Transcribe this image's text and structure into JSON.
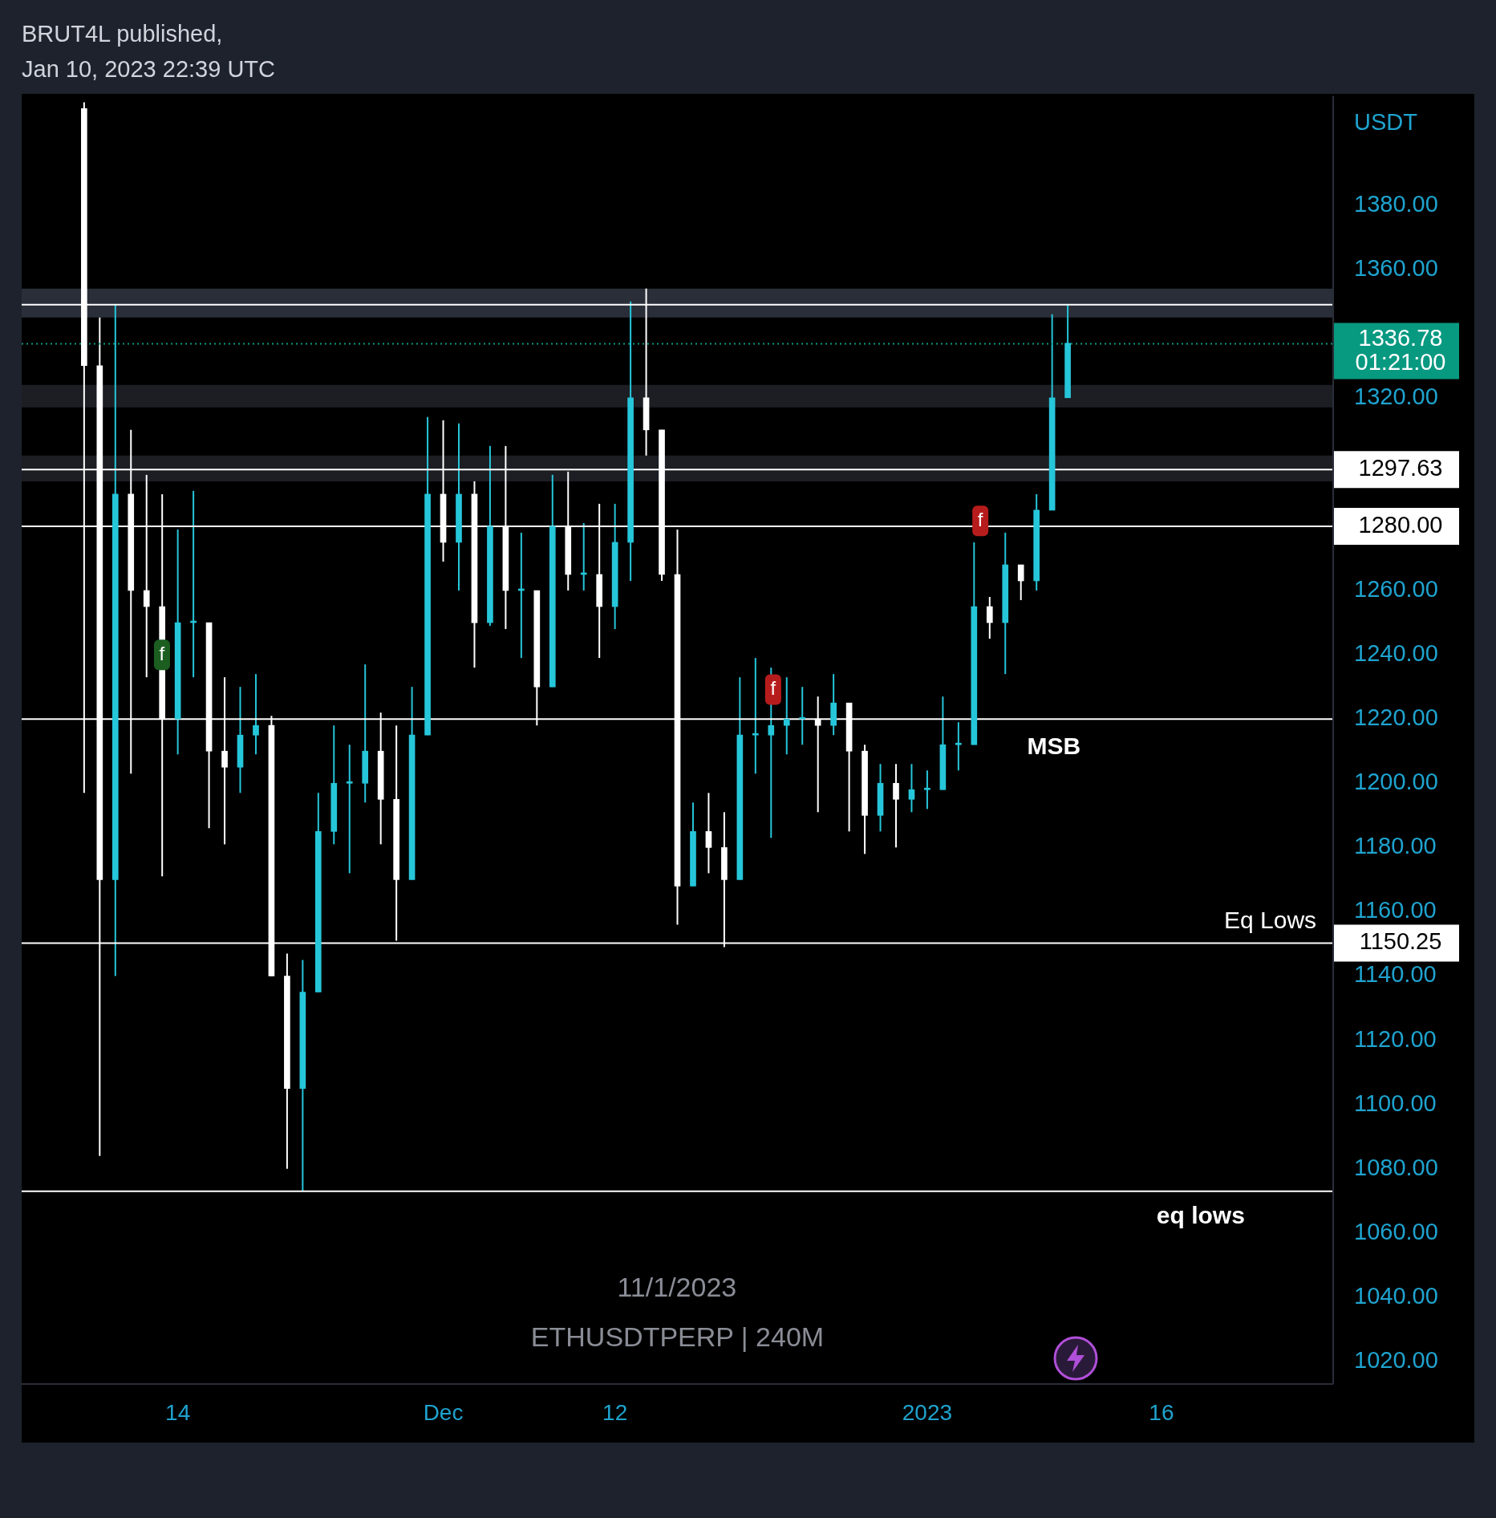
{
  "chart_data": {
    "type": "candlestick",
    "title": "BRUT4L published,",
    "subtitle": "Jan 10, 2023 22:39 UTC",
    "ylabel": "USDT",
    "x": [
      "2022-11-08",
      "2022-11-09",
      "2022-11-10",
      "2022-11-11",
      "2022-11-12",
      "2022-11-13",
      "2022-11-14",
      "2022-11-15",
      "2022-11-16",
      "2022-11-17",
      "2022-11-18",
      "2022-11-19",
      "2022-11-20",
      "2022-11-21",
      "2022-11-22",
      "2022-11-23",
      "2022-11-24",
      "2022-11-25",
      "2022-11-26",
      "2022-11-27",
      "2022-11-28",
      "2022-11-29",
      "2022-11-30",
      "2022-12-01",
      "2022-12-02",
      "2022-12-03",
      "2022-12-04",
      "2022-12-05",
      "2022-12-06",
      "2022-12-07",
      "2022-12-08",
      "2022-12-09",
      "2022-12-10",
      "2022-12-11",
      "2022-12-12",
      "2022-12-13",
      "2022-12-14",
      "2022-12-15",
      "2022-12-16",
      "2022-12-17",
      "2022-12-18",
      "2022-12-19",
      "2022-12-20",
      "2022-12-21",
      "2022-12-22",
      "2022-12-23",
      "2022-12-24",
      "2022-12-25",
      "2022-12-26",
      "2022-12-27",
      "2022-12-28",
      "2022-12-29",
      "2022-12-30",
      "2022-12-31",
      "2023-01-01",
      "2023-01-02",
      "2023-01-03",
      "2023-01-04",
      "2023-01-05",
      "2023-01-06",
      "2023-01-07",
      "2023-01-08",
      "2023-01-09",
      "2023-01-10"
    ],
    "ohlc": [
      [
        1410,
        1412,
        1197,
        1330
      ],
      [
        1330,
        1345,
        1084,
        1170
      ],
      [
        1170,
        1349,
        1140,
        1290
      ],
      [
        1290,
        1310,
        1203,
        1260
      ],
      [
        1260,
        1296,
        1233,
        1255
      ],
      [
        1255,
        1290,
        1171,
        1220
      ],
      [
        1220,
        1279,
        1209,
        1250
      ],
      [
        1250,
        1291,
        1233,
        1250
      ],
      [
        1250,
        1250,
        1186,
        1210
      ],
      [
        1210,
        1233,
        1181,
        1205
      ],
      [
        1205,
        1230,
        1197,
        1215
      ],
      [
        1215,
        1234,
        1209,
        1218
      ],
      [
        1218,
        1221,
        1140,
        1140
      ],
      [
        1140,
        1147,
        1080,
        1105
      ],
      [
        1105,
        1145,
        1073,
        1135
      ],
      [
        1135,
        1197,
        1135,
        1185
      ],
      [
        1185,
        1218,
        1181,
        1200
      ],
      [
        1200,
        1212,
        1172,
        1200
      ],
      [
        1200,
        1237,
        1194,
        1210
      ],
      [
        1210,
        1222,
        1181,
        1195
      ],
      [
        1195,
        1218,
        1151,
        1170
      ],
      [
        1170,
        1230,
        1170,
        1215
      ],
      [
        1215,
        1314,
        1215,
        1290
      ],
      [
        1290,
        1313,
        1269,
        1275
      ],
      [
        1275,
        1312,
        1260,
        1290
      ],
      [
        1290,
        1294,
        1236,
        1250
      ],
      [
        1250,
        1305,
        1249,
        1280
      ],
      [
        1280,
        1305,
        1248,
        1260
      ],
      [
        1260,
        1278,
        1239,
        1260
      ],
      [
        1260,
        1260,
        1218,
        1230
      ],
      [
        1230,
        1296,
        1230,
        1280
      ],
      [
        1280,
        1297,
        1260,
        1265
      ],
      [
        1265,
        1281,
        1260,
        1265
      ],
      [
        1265,
        1287,
        1239,
        1255
      ],
      [
        1255,
        1287,
        1248,
        1275
      ],
      [
        1275,
        1350,
        1263,
        1320
      ],
      [
        1320,
        1354,
        1302,
        1310
      ],
      [
        1310,
        1310,
        1263,
        1265
      ],
      [
        1265,
        1279,
        1156,
        1168
      ],
      [
        1168,
        1194,
        1168,
        1185
      ],
      [
        1185,
        1197,
        1172,
        1180
      ],
      [
        1180,
        1191,
        1149,
        1170
      ],
      [
        1170,
        1233,
        1170,
        1215
      ],
      [
        1215,
        1239,
        1203,
        1215
      ],
      [
        1215,
        1236,
        1183,
        1218
      ],
      [
        1218,
        1233,
        1209,
        1220
      ],
      [
        1220,
        1230,
        1212,
        1220
      ],
      [
        1220,
        1227,
        1191,
        1218
      ],
      [
        1218,
        1234,
        1215,
        1225
      ],
      [
        1225,
        1225,
        1185,
        1210
      ],
      [
        1210,
        1212,
        1178,
        1190
      ],
      [
        1190,
        1206,
        1185,
        1200
      ],
      [
        1200,
        1206,
        1180,
        1195
      ],
      [
        1195,
        1206,
        1191,
        1198
      ],
      [
        1198,
        1204,
        1192,
        1198
      ],
      [
        1198,
        1227,
        1198,
        1212
      ],
      [
        1212,
        1219,
        1204,
        1212
      ],
      [
        1212,
        1275,
        1212,
        1255
      ],
      [
        1255,
        1258,
        1245,
        1250
      ],
      [
        1250,
        1278,
        1234,
        1268
      ],
      [
        1268,
        1268,
        1257,
        1263
      ],
      [
        1263,
        1290,
        1260,
        1285
      ],
      [
        1285,
        1346,
        1285,
        1320
      ],
      [
        1320,
        1349,
        1320,
        1337
      ]
    ],
    "colors": [
      "#ffffff",
      "#ffffff",
      "#26c6da",
      "#ffffff",
      "#ffffff",
      "#ffffff",
      "#26c6da",
      "#26c6da",
      "#ffffff",
      "#ffffff",
      "#26c6da",
      "#26c6da",
      "#ffffff",
      "#ffffff",
      "#26c6da",
      "#26c6da",
      "#26c6da",
      "#26c6da",
      "#26c6da",
      "#ffffff",
      "#ffffff",
      "#26c6da",
      "#26c6da",
      "#ffffff",
      "#26c6da",
      "#ffffff",
      "#26c6da",
      "#ffffff",
      "#26c6da",
      "#ffffff",
      "#26c6da",
      "#ffffff",
      "#26c6da",
      "#ffffff",
      "#26c6da",
      "#26c6da",
      "#ffffff",
      "#ffffff",
      "#ffffff",
      "#26c6da",
      "#ffffff",
      "#ffffff",
      "#26c6da",
      "#26c6da",
      "#26c6da",
      "#26c6da",
      "#26c6da",
      "#ffffff",
      "#26c6da",
      "#ffffff",
      "#ffffff",
      "#26c6da",
      "#ffffff",
      "#26c6da",
      "#26c6da",
      "#26c6da",
      "#26c6da",
      "#26c6da",
      "#ffffff",
      "#26c6da",
      "#ffffff",
      "#26c6da",
      "#26c6da",
      "#26c6da"
    ],
    "xlim": [
      "2022-11-04",
      "2023-01-27"
    ],
    "xticks": [
      {
        "value": "2022-11-14",
        "label": "14"
      },
      {
        "value": "2022-12-01",
        "label": "Dec"
      },
      {
        "value": "2022-12-12",
        "label": "12"
      },
      {
        "value": "2023-01-01",
        "label": "2023"
      },
      {
        "value": "2023-01-16",
        "label": "16"
      }
    ],
    "ylim": [
      1013,
      1414
    ],
    "yticks": [
      {
        "value": 1020,
        "label": "1020.00"
      },
      {
        "value": 1040,
        "label": "1040.00"
      },
      {
        "value": 1060,
        "label": "1060.00"
      },
      {
        "value": 1080,
        "label": "1080.00"
      },
      {
        "value": 1100,
        "label": "1100.00"
      },
      {
        "value": 1120,
        "label": "1120.00"
      },
      {
        "value": 1140,
        "label": "1140.00"
      },
      {
        "value": 1160,
        "label": "1160.00"
      },
      {
        "value": 1180,
        "label": "1180.00"
      },
      {
        "value": 1200,
        "label": "1200.00"
      },
      {
        "value": 1220,
        "label": "1220.00"
      },
      {
        "value": 1240,
        "label": "1240.00"
      },
      {
        "value": 1260,
        "label": "1260.00"
      },
      {
        "value": 1320,
        "label": "1320.00"
      },
      {
        "value": 1360,
        "label": "1360.00"
      },
      {
        "value": 1380,
        "label": "1380.00"
      }
    ],
    "bands": [
      {
        "axis": "y",
        "from": 1345,
        "to": 1354,
        "color": "#2a2e39"
      },
      {
        "axis": "y",
        "from": 1317,
        "to": 1324,
        "color": "#1c1e24"
      },
      {
        "axis": "y",
        "from": 1294,
        "to": 1302,
        "color": "#1c1e24"
      }
    ],
    "ref_lines": [
      {
        "axis": "y",
        "value": 1349,
        "color": "#ffffff"
      },
      {
        "axis": "y",
        "value": 1336.78,
        "label": "1336.78 01:21:00",
        "color": "#089981",
        "line_style": "dotted"
      },
      {
        "axis": "y",
        "value": 1297.63,
        "label": "1297.63",
        "color": "#ffffff"
      },
      {
        "axis": "y",
        "value": 1280,
        "label": "1280.00",
        "color": "#ffffff"
      },
      {
        "axis": "y",
        "value": 1220,
        "color": "#ffffff"
      },
      {
        "axis": "y",
        "value": 1150.25,
        "label": "1150.25",
        "color": "#ffffff"
      },
      {
        "axis": "y",
        "value": 1073,
        "color": "#ffffff"
      }
    ],
    "annotations": [
      "11/1/2023",
      "ETHUSDTPERP | 240M",
      "MSB",
      "Eq Lows",
      "eq lows",
      "f",
      "f",
      "f"
    ],
    "legend": false
  }
}
